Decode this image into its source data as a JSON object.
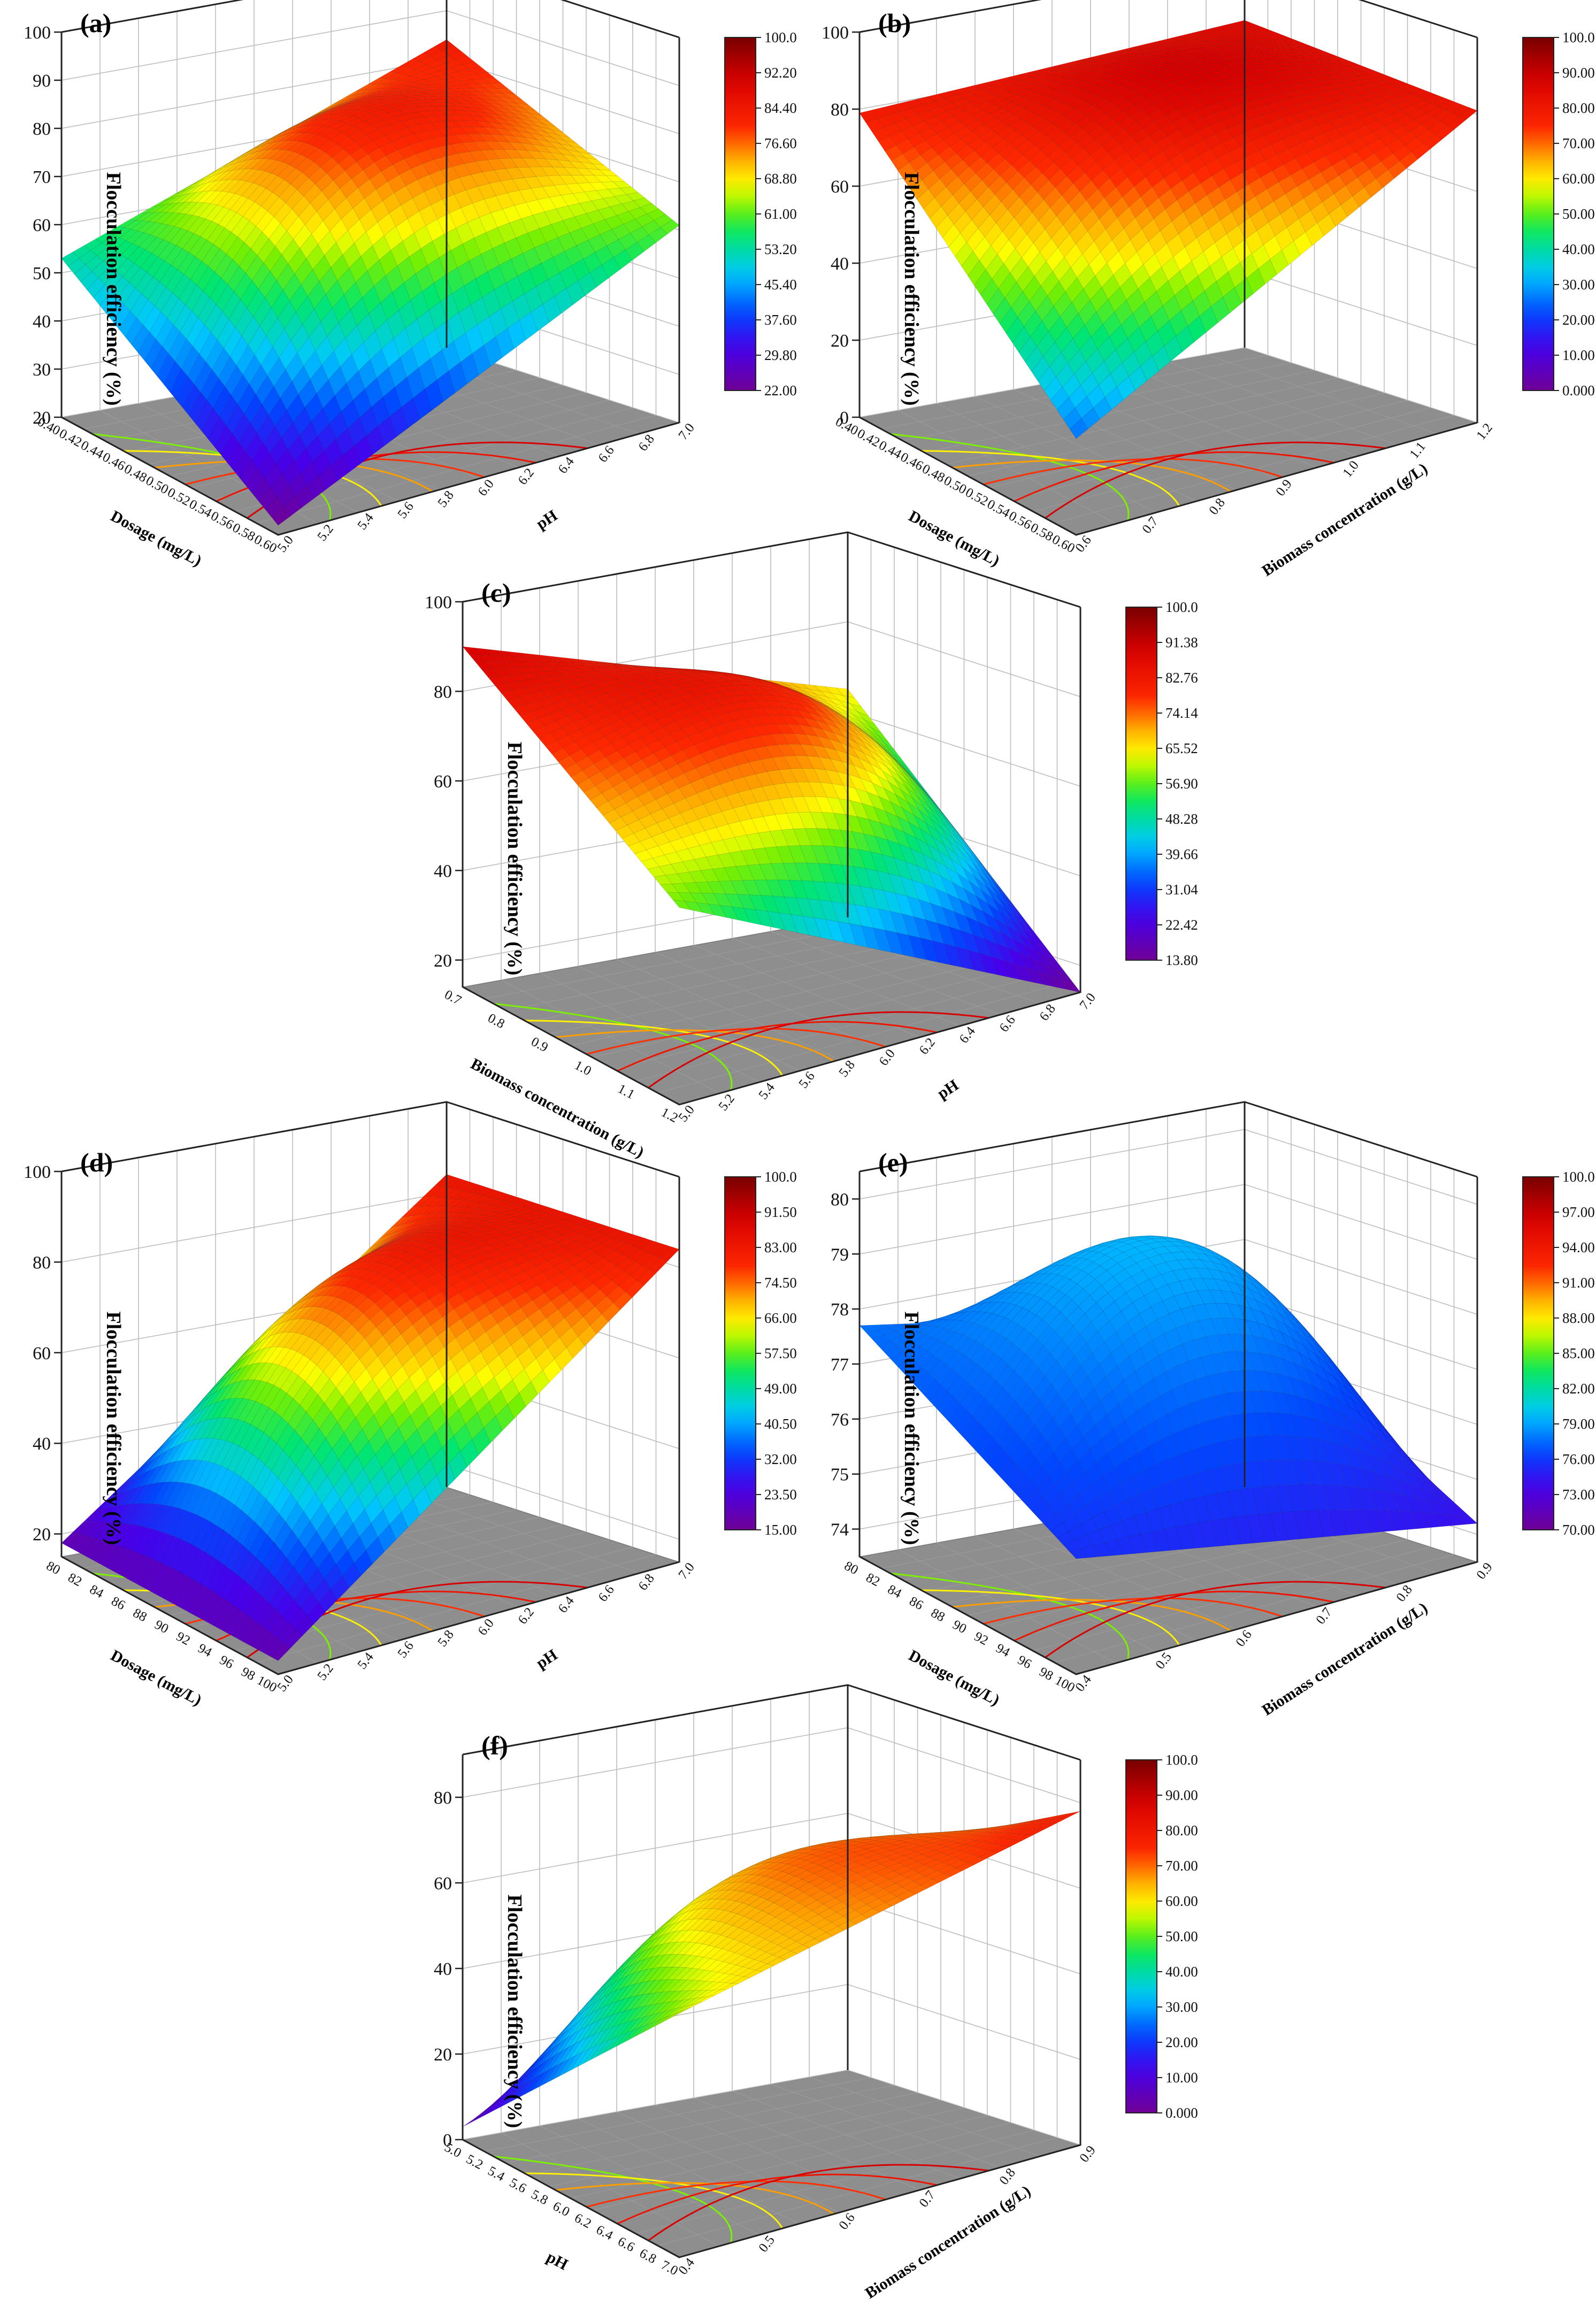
{
  "chart_data": [
    {
      "type": "surface",
      "panel_label": "(a)",
      "zlabel": "Flocculation efficiency (%)",
      "xlabel": "Dosage (mg/L)",
      "ylabel": "pH",
      "x_ticks": [
        "0.40",
        "0.42",
        "0.44",
        "0.46",
        "0.48",
        "0.50",
        "0.52",
        "0.54",
        "0.56",
        "0.58",
        "0.60"
      ],
      "y_ticks": [
        "5.0",
        "5.2",
        "5.4",
        "5.6",
        "5.8",
        "6.0",
        "6.2",
        "6.4",
        "6.6",
        "6.8",
        "7.0"
      ],
      "z_ticks": [
        "20",
        "30",
        "40",
        "50",
        "60",
        "70",
        "80",
        "90",
        "100"
      ],
      "zlim": [
        20,
        100
      ],
      "corner_z": {
        "front": 22,
        "left": 53,
        "right": 61,
        "back": 84
      },
      "peak_z": 97,
      "colorbar": {
        "min": 22.0,
        "max": 100.0,
        "ticks": [
          "100.0",
          "92.20",
          "84.40",
          "76.60",
          "68.80",
          "61.00",
          "53.20",
          "45.40",
          "37.60",
          "29.80",
          "22.00"
        ]
      }
    },
    {
      "type": "surface",
      "panel_label": "(b)",
      "zlabel": "Flocculation efficiency (%)",
      "xlabel": "Dosage (mg/L)",
      "ylabel": "Biomass concentration (g/L)",
      "x_ticks": [
        "0.40",
        "0.42",
        "0.44",
        "0.46",
        "0.48",
        "0.50",
        "0.52",
        "0.54",
        "0.56",
        "0.58",
        "0.60"
      ],
      "y_ticks": [
        "0.6",
        "0.7",
        "0.8",
        "0.9",
        "1.0",
        "1.1",
        "1.2"
      ],
      "z_ticks": [
        "0",
        "20",
        "40",
        "60",
        "80",
        "100"
      ],
      "zlim": [
        0,
        100
      ],
      "corner_z": {
        "front": 25,
        "left": 79,
        "right": 81,
        "back": 85
      },
      "peak_z": 95,
      "colorbar": {
        "min": 0.0,
        "max": 100.0,
        "ticks": [
          "100.0",
          "90.00",
          "80.00",
          "70.00",
          "60.00",
          "50.00",
          "40.00",
          "30.00",
          "20.00",
          "10.00",
          "0.000"
        ]
      }
    },
    {
      "type": "surface",
      "panel_label": "(c)",
      "zlabel": "Flocculation efficiency (%)",
      "xlabel": "Biomass concentration (g/L)",
      "ylabel": "pH",
      "x_ticks": [
        "0.7",
        "0.8",
        "0.9",
        "1.0",
        "1.1",
        "1.2"
      ],
      "y_ticks": [
        "5.0",
        "5.2",
        "5.4",
        "5.6",
        "5.8",
        "6.0",
        "6.2",
        "6.4",
        "6.6",
        "6.8",
        "7.0"
      ],
      "z_ticks": [
        "20",
        "40",
        "60",
        "80",
        "100"
      ],
      "zlim": [
        14,
        100
      ],
      "corner_z": {
        "front": 58,
        "left": 90,
        "right": 14,
        "back": 65
      },
      "peak_z": 100,
      "colorbar": {
        "min": 13.8,
        "max": 100.0,
        "ticks": [
          "100.0",
          "91.38",
          "82.76",
          "74.14",
          "65.52",
          "56.90",
          "48.28",
          "39.66",
          "31.04",
          "22.42",
          "13.80"
        ]
      }
    },
    {
      "type": "surface",
      "panel_label": "(d)",
      "zlabel": "Flocculation efficiency (%)",
      "xlabel": "Dosage (mg/L)",
      "ylabel": "pH",
      "x_ticks": [
        "80",
        "82",
        "84",
        "86",
        "88",
        "90",
        "92",
        "94",
        "96",
        "98",
        "100"
      ],
      "y_ticks": [
        "5.0",
        "5.2",
        "5.4",
        "5.6",
        "5.8",
        "6.0",
        "6.2",
        "6.4",
        "6.6",
        "6.8",
        "7.0"
      ],
      "z_ticks": [
        "20",
        "40",
        "60",
        "80",
        "100"
      ],
      "zlim": [
        15,
        100
      ],
      "corner_z": {
        "front": 18,
        "left": 18,
        "right": 84,
        "back": 84
      },
      "peak_z": 97,
      "colorbar": {
        "min": 15.0,
        "max": 100.0,
        "ticks": [
          "100.0",
          "91.50",
          "83.00",
          "74.50",
          "66.00",
          "57.50",
          "49.00",
          "40.50",
          "32.00",
          "23.50",
          "15.00"
        ]
      }
    },
    {
      "type": "surface",
      "panel_label": "(e)",
      "zlabel": "Flocculation efficiency (%)",
      "xlabel": "Dosage (mg/L)",
      "ylabel": "Biomass concentration (g/L)",
      "x_ticks": [
        "80",
        "82",
        "84",
        "86",
        "88",
        "90",
        "92",
        "94",
        "96",
        "98",
        "100"
      ],
      "y_ticks": [
        "0.4",
        "0.5",
        "0.6",
        "0.7",
        "0.8",
        "0.9"
      ],
      "z_ticks": [
        "74",
        "75",
        "76",
        "77",
        "78",
        "79",
        "80"
      ],
      "zlim": [
        73.5,
        80.5
      ],
      "corner_z": {
        "front": 75.6,
        "left": 77.7,
        "right": 74.2,
        "back": 76.7
      },
      "peak_z": 79.9,
      "colorbar": {
        "min": 70.0,
        "max": 100.0,
        "ticks": [
          "100.0",
          "97.00",
          "94.00",
          "91.00",
          "88.00",
          "85.00",
          "82.00",
          "79.00",
          "76.00",
          "73.00",
          "70.00"
        ]
      }
    },
    {
      "type": "surface",
      "panel_label": "(f)",
      "zlabel": "Flocculation efficiency (%)",
      "xlabel": "pH",
      "ylabel": "Biomass concentration (g/L)",
      "x_ticks": [
        "5.0",
        "5.2",
        "5.4",
        "5.6",
        "5.8",
        "6.0",
        "6.2",
        "6.4",
        "6.6",
        "6.8",
        "7.0"
      ],
      "y_ticks": [
        "0.4",
        "0.5",
        "0.6",
        "0.7",
        "0.8",
        "0.9"
      ],
      "z_ticks": [
        "0",
        "20",
        "40",
        "60",
        "80"
      ],
      "zlim": [
        0,
        90
      ],
      "corner_z": {
        "front": 57,
        "left": 3,
        "right": 78,
        "back": 50
      },
      "peak_z": 86,
      "colorbar": {
        "min": 0.0,
        "max": 100.0,
        "ticks": [
          "100.0",
          "90.00",
          "80.00",
          "70.00",
          "60.00",
          "50.00",
          "40.00",
          "30.00",
          "20.00",
          "10.00",
          "0.000"
        ]
      }
    }
  ]
}
